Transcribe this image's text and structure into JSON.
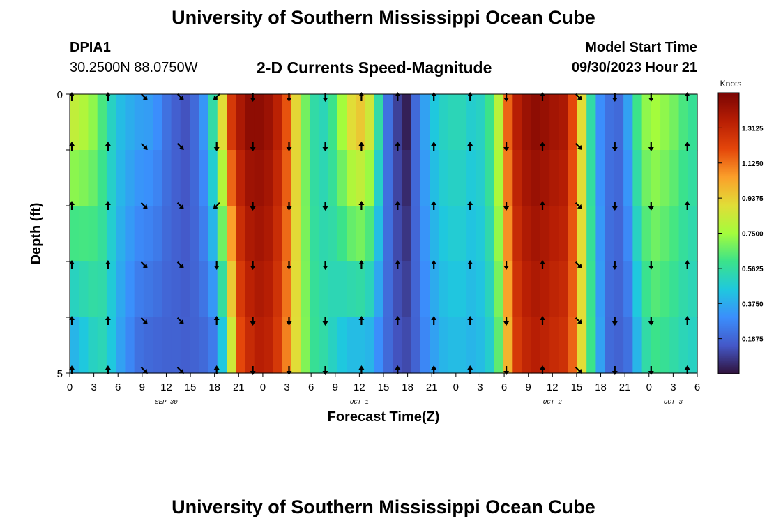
{
  "page": {
    "title_top": "University of Southern Mississippi Ocean Cube",
    "title_bottom": "University of Southern Mississippi Ocean Cube",
    "station_id": "DPIA1",
    "station_coords": "30.2500N  88.0750W",
    "subtitle": "2-D Currents Speed-Magnitude",
    "model_start_label": "Model Start Time",
    "model_start_value": "09/30/2023 Hour 21"
  },
  "chart_data": {
    "type": "heatmap",
    "title": "2-D Currents Speed-Magnitude",
    "xlabel": "Forecast Time(Z)",
    "ylabel": "Depth (ft)",
    "x_range_hours": [
      0,
      78
    ],
    "y_range": [
      0,
      5
    ],
    "x_tick_labels": [
      "0",
      "3",
      "6",
      "9",
      "12",
      "15",
      "18",
      "21",
      "0",
      "3",
      "6",
      "9",
      "12",
      "15",
      "18",
      "21",
      "0",
      "3",
      "6",
      "9",
      "12",
      "15",
      "18",
      "21",
      "0",
      "3",
      "6"
    ],
    "y_tick_labels": [
      "0",
      "5"
    ],
    "date_labels": [
      {
        "text": "SEP 30",
        "hour": 12
      },
      {
        "text": "OCT 1",
        "hour": 36
      },
      {
        "text": "OCT 2",
        "hour": 60
      },
      {
        "text": "OCT 3",
        "hour": 75
      }
    ],
    "colorbar": {
      "title": "Knots",
      "range": [
        0,
        1.5
      ],
      "tick_labels": [
        "1.3125",
        "1.1250",
        "0.9375",
        "0.7500",
        "0.5625",
        "0.3750",
        "0.1875"
      ],
      "tick_values": [
        1.3125,
        1.125,
        0.9375,
        0.75,
        0.5625,
        0.375,
        0.1875
      ]
    },
    "depth_levels": 5,
    "surface_speed_knots": [
      0.82,
      0.78,
      0.72,
      0.62,
      0.5,
      0.42,
      0.38,
      0.35,
      0.34,
      0.3,
      0.22,
      0.17,
      0.14,
      0.2,
      0.32,
      0.55,
      0.9,
      1.25,
      1.38,
      1.45,
      1.45,
      1.42,
      1.34,
      1.18,
      0.92,
      0.68,
      0.55,
      0.52,
      0.6,
      0.75,
      0.9,
      0.95,
      0.85,
      0.55,
      0.22,
      0.1,
      0.03,
      0.2,
      0.35,
      0.45,
      0.5,
      0.52,
      0.52,
      0.48,
      0.5,
      0.6,
      0.8,
      1.15,
      1.35,
      1.42,
      1.45,
      1.43,
      1.4,
      1.38,
      1.2,
      0.9,
      0.55,
      0.3,
      0.22,
      0.2,
      0.35,
      0.6,
      0.72,
      0.75,
      0.72,
      0.68,
      0.62,
      0.58
    ],
    "bottom_speed_knots": [
      0.4,
      0.45,
      0.5,
      0.52,
      0.45,
      0.35,
      0.28,
      0.22,
      0.2,
      0.19,
      0.18,
      0.18,
      0.17,
      0.18,
      0.2,
      0.25,
      0.45,
      0.85,
      1.2,
      1.3,
      1.35,
      1.33,
      1.25,
      1.1,
      0.9,
      0.7,
      0.58,
      0.55,
      0.5,
      0.45,
      0.42,
      0.42,
      0.4,
      0.3,
      0.2,
      0.14,
      0.12,
      0.18,
      0.28,
      0.35,
      0.4,
      0.42,
      0.42,
      0.4,
      0.42,
      0.48,
      0.65,
      1.0,
      1.25,
      1.32,
      1.35,
      1.33,
      1.3,
      1.28,
      1.15,
      0.9,
      0.6,
      0.35,
      0.2,
      0.18,
      0.22,
      0.4,
      0.55,
      0.6,
      0.58,
      0.55,
      0.52,
      0.5
    ],
    "arrow_columns_hours": [
      0,
      4.5,
      9,
      13.5,
      18,
      22.5,
      27,
      31.5,
      36,
      40.5,
      45,
      49.5,
      54,
      58.5,
      63,
      67.5,
      72,
      76.5
    ],
    "arrow_directions_deg": [
      [
        0,
        0,
        0,
        0,
        0,
        0
      ],
      [
        0,
        0,
        0,
        0,
        0,
        0
      ],
      [
        135,
        135,
        135,
        135,
        135,
        135
      ],
      [
        135,
        135,
        135,
        135,
        135,
        135
      ],
      [
        225,
        180,
        225,
        180,
        0,
        0
      ],
      [
        180,
        180,
        180,
        180,
        180,
        180
      ],
      [
        180,
        180,
        180,
        180,
        180,
        180
      ],
      [
        180,
        180,
        180,
        180,
        180,
        180
      ],
      [
        0,
        0,
        0,
        0,
        0,
        0
      ],
      [
        0,
        0,
        0,
        0,
        0,
        0
      ],
      [
        0,
        0,
        0,
        0,
        0,
        0
      ],
      [
        0,
        0,
        0,
        0,
        0,
        0
      ],
      [
        180,
        180,
        180,
        180,
        180,
        180
      ],
      [
        0,
        0,
        0,
        0,
        0,
        0
      ],
      [
        135,
        135,
        135,
        135,
        135,
        135
      ],
      [
        180,
        180,
        180,
        180,
        180,
        180
      ],
      [
        180,
        180,
        180,
        180,
        180,
        180
      ],
      [
        0,
        0,
        0,
        0,
        0,
        0
      ]
    ]
  }
}
